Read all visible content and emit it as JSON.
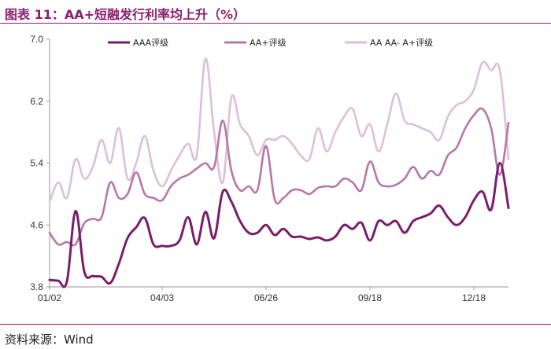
{
  "header": {
    "title": "图表 11：AA+短融发行利率均上升（%）"
  },
  "footer": {
    "source": "资料来源：Wind"
  },
  "chart_data": {
    "type": "line",
    "title": "图表 11：AA+短融发行利率均上升（%）",
    "xlabel": "",
    "ylabel": "",
    "ylim": [
      3.8,
      7.0
    ],
    "yticks": [
      "3.8",
      "4.6",
      "5.4",
      "6.2",
      "7.0"
    ],
    "xticks": [
      "01/02",
      "04/03",
      "06/26",
      "09/18",
      "12/18"
    ],
    "xtick_index": [
      0,
      13,
      25,
      37,
      49
    ],
    "legend_position": "top",
    "grid": false,
    "series": [
      {
        "name": "AAA评级",
        "color": "#7a1e6c",
        "values": [
          3.89,
          3.88,
          3.87,
          4.78,
          4.0,
          3.94,
          3.93,
          3.85,
          4.1,
          4.43,
          4.57,
          4.69,
          4.35,
          4.33,
          4.33,
          4.4,
          4.7,
          4.35,
          4.77,
          4.43,
          5.03,
          4.9,
          4.65,
          4.5,
          4.5,
          4.6,
          4.47,
          4.55,
          4.45,
          4.45,
          4.42,
          4.44,
          4.4,
          4.45,
          4.6,
          4.55,
          4.63,
          4.4,
          4.65,
          4.6,
          4.65,
          4.5,
          4.65,
          4.7,
          4.75,
          4.85,
          4.7,
          4.6,
          4.7,
          4.92,
          5.03,
          4.8,
          5.4,
          4.82
        ]
      },
      {
        "name": "AA+评级",
        "color": "#b677aa",
        "values": [
          4.5,
          4.35,
          4.38,
          4.35,
          4.62,
          4.68,
          4.7,
          5.15,
          4.95,
          5.0,
          5.28,
          5.0,
          4.95,
          4.92,
          5.1,
          5.2,
          5.25,
          5.33,
          5.4,
          5.35,
          5.95,
          5.3,
          5.05,
          5.1,
          5.05,
          5.62,
          4.93,
          4.95,
          5.05,
          5.05,
          5.0,
          5.08,
          5.1,
          5.1,
          5.2,
          5.15,
          5.05,
          5.42,
          5.15,
          5.1,
          5.12,
          5.2,
          5.35,
          5.2,
          5.3,
          5.25,
          5.5,
          5.6,
          5.85,
          6.02,
          6.1,
          5.85,
          5.25,
          5.92
        ]
      },
      {
        "name": "AA AA- A+评级",
        "color": "#dcc0d8",
        "values": [
          4.9,
          5.15,
          4.95,
          5.45,
          5.2,
          5.35,
          5.7,
          5.4,
          5.85,
          5.2,
          5.4,
          5.75,
          5.3,
          5.1,
          5.3,
          5.5,
          5.65,
          5.5,
          6.75,
          5.8,
          5.15,
          6.25,
          5.9,
          5.75,
          5.5,
          5.7,
          5.7,
          5.75,
          5.65,
          5.5,
          5.45,
          5.85,
          5.55,
          5.8,
          6.0,
          6.1,
          5.75,
          5.9,
          5.55,
          5.9,
          6.3,
          5.95,
          5.9,
          5.85,
          5.8,
          5.7,
          6.0,
          6.15,
          6.2,
          6.35,
          6.7,
          6.6,
          6.6,
          5.45
        ]
      }
    ]
  }
}
